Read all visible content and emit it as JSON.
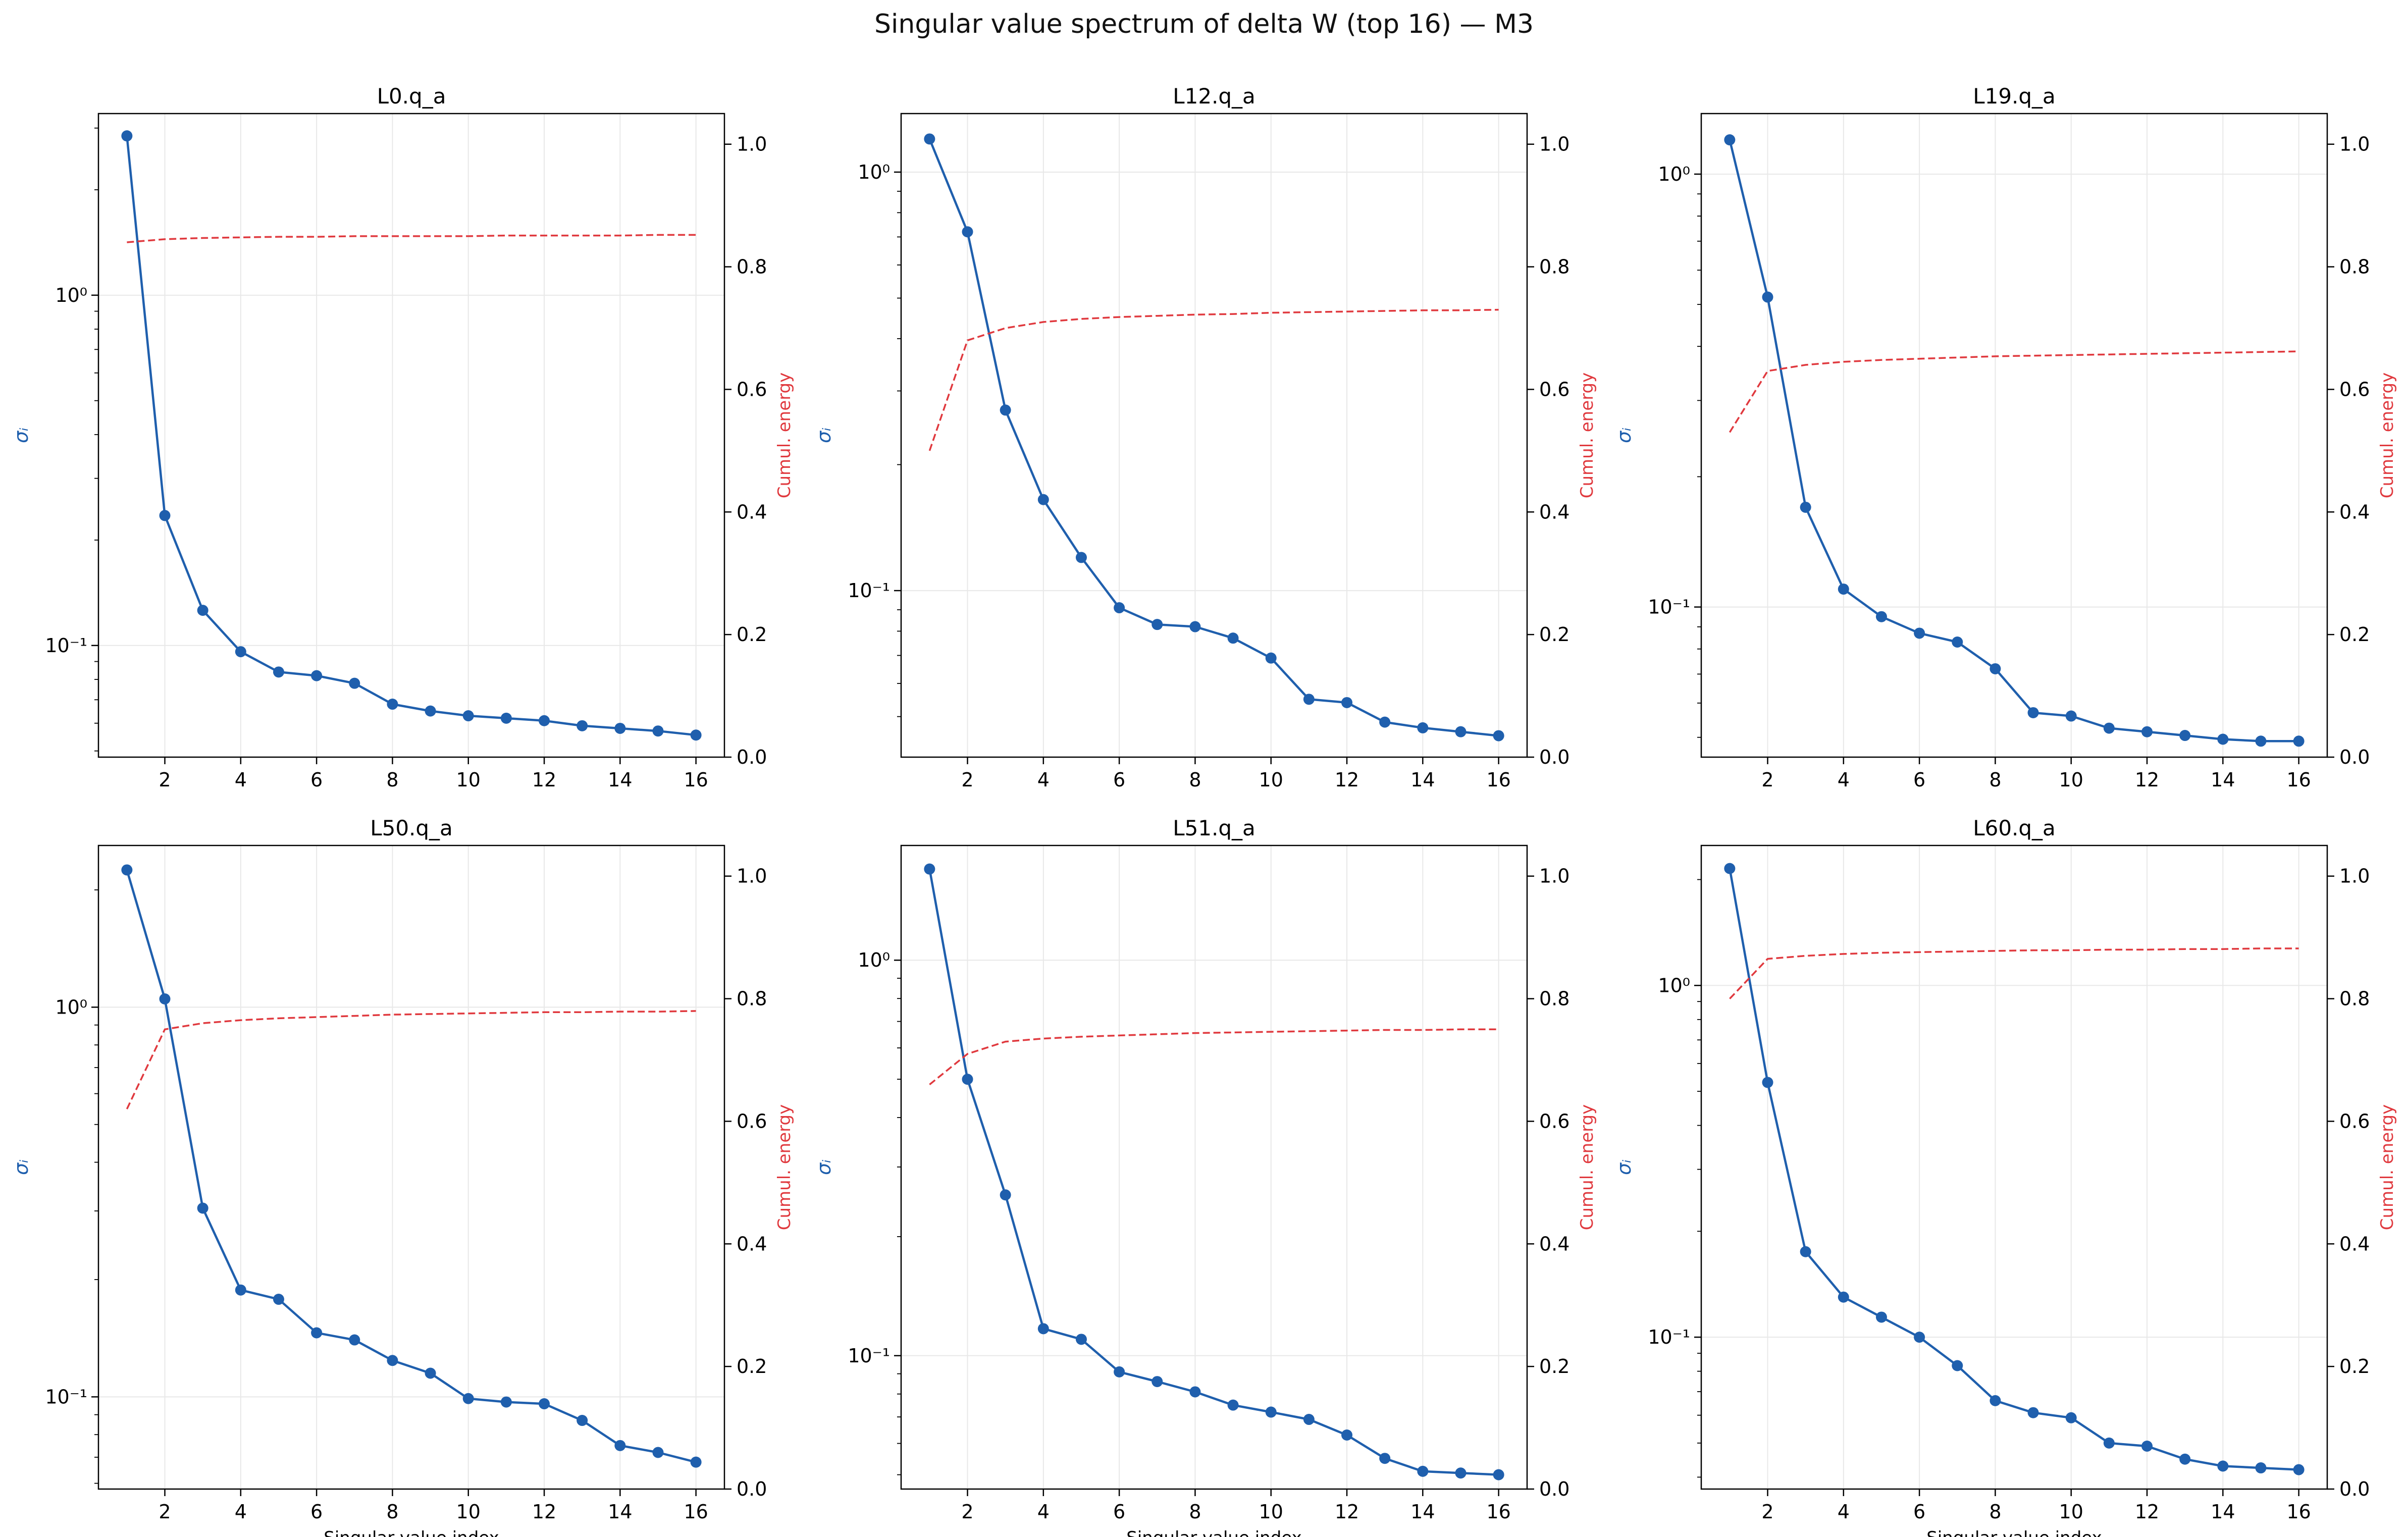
{
  "figure": {
    "suptitle": "Singular value spectrum of delta W (top 16) — M3"
  },
  "style": {
    "sigma_color": "#1f5fad",
    "energy_color": "#e0393e",
    "grid_color": "#e8e8e8",
    "axis_color": "#000000"
  },
  "chart_data": [
    {
      "type": "line",
      "title": "L0.q_a",
      "xlabel": "",
      "ylabel_left": "σᵢ",
      "ylabel_right": "Cumul. energy",
      "x": [
        1,
        2,
        3,
        4,
        5,
        6,
        7,
        8,
        9,
        10,
        11,
        12,
        13,
        14,
        15,
        16
      ],
      "xticks": [
        2,
        4,
        6,
        8,
        10,
        12,
        14,
        16
      ],
      "xlim": [
        0.25,
        16.75
      ],
      "left_axis": {
        "scale": "log",
        "ylim": [
          0.048,
          3.3
        ],
        "major_ticks": [
          0.1,
          1
        ],
        "major_tick_labels": [
          "10⁻¹",
          "10⁰"
        ]
      },
      "right_axis": {
        "scale": "linear",
        "ylim": [
          0,
          1.05
        ],
        "ticks": [
          0.0,
          0.2,
          0.4,
          0.6,
          0.8,
          1.0
        ],
        "tick_labels": [
          "0.0",
          "0.2",
          "0.4",
          "0.6",
          "0.8",
          "1.0"
        ]
      },
      "series": [
        {
          "axis": "left",
          "marker": "circle",
          "line": "solid",
          "values": [
            2.85,
            0.235,
            0.126,
            0.096,
            0.084,
            0.082,
            0.078,
            0.068,
            0.065,
            0.063,
            0.062,
            0.061,
            0.059,
            0.058,
            0.057,
            0.0555
          ]
        },
        {
          "axis": "right",
          "marker": "none",
          "line": "dashed",
          "values": [
            0.84,
            0.845,
            0.847,
            0.848,
            0.849,
            0.849,
            0.85,
            0.85,
            0.85,
            0.85,
            0.851,
            0.851,
            0.851,
            0.851,
            0.852,
            0.852
          ]
        }
      ]
    },
    {
      "type": "line",
      "title": "L12.q_a",
      "xlabel": "",
      "ylabel_left": "σᵢ",
      "ylabel_right": "Cumul. energy",
      "x": [
        1,
        2,
        3,
        4,
        5,
        6,
        7,
        8,
        9,
        10,
        11,
        12,
        13,
        14,
        15,
        16
      ],
      "xticks": [
        2,
        4,
        6,
        8,
        10,
        12,
        14,
        16
      ],
      "xlim": [
        0.25,
        16.75
      ],
      "left_axis": {
        "scale": "log",
        "ylim": [
          0.04,
          1.38
        ],
        "major_ticks": [
          0.1,
          1
        ],
        "major_tick_labels": [
          "10⁻¹",
          "10⁰"
        ]
      },
      "right_axis": {
        "scale": "linear",
        "ylim": [
          0,
          1.05
        ],
        "ticks": [
          0.0,
          0.2,
          0.4,
          0.6,
          0.8,
          1.0
        ],
        "tick_labels": [
          "0.0",
          "0.2",
          "0.4",
          "0.6",
          "0.8",
          "1.0"
        ]
      },
      "series": [
        {
          "axis": "left",
          "marker": "circle",
          "line": "solid",
          "values": [
            1.2,
            0.72,
            0.27,
            0.165,
            0.12,
            0.091,
            0.083,
            0.082,
            0.077,
            0.069,
            0.055,
            0.054,
            0.0485,
            0.047,
            0.046,
            0.045
          ]
        },
        {
          "axis": "right",
          "marker": "none",
          "line": "dashed",
          "values": [
            0.5,
            0.68,
            0.7,
            0.71,
            0.715,
            0.718,
            0.72,
            0.722,
            0.723,
            0.725,
            0.726,
            0.727,
            0.728,
            0.729,
            0.729,
            0.73
          ]
        }
      ]
    },
    {
      "type": "line",
      "title": "L19.q_a",
      "xlabel": "",
      "ylabel_left": "σᵢ",
      "ylabel_right": "Cumul. energy",
      "x": [
        1,
        2,
        3,
        4,
        5,
        6,
        7,
        8,
        9,
        10,
        11,
        12,
        13,
        14,
        15,
        16
      ],
      "xticks": [
        2,
        4,
        6,
        8,
        10,
        12,
        14,
        16
      ],
      "xlim": [
        0.25,
        16.75
      ],
      "left_axis": {
        "scale": "log",
        "ylim": [
          0.045,
          1.38
        ],
        "major_ticks": [
          0.1,
          1
        ],
        "major_tick_labels": [
          "10⁻¹",
          "10⁰"
        ]
      },
      "right_axis": {
        "scale": "linear",
        "ylim": [
          0,
          1.05
        ],
        "ticks": [
          0.0,
          0.2,
          0.4,
          0.6,
          0.8,
          1.0
        ],
        "tick_labels": [
          "0.0",
          "0.2",
          "0.4",
          "0.6",
          "0.8",
          "1.0"
        ]
      },
      "series": [
        {
          "axis": "left",
          "marker": "circle",
          "line": "solid",
          "values": [
            1.2,
            0.52,
            0.17,
            0.11,
            0.095,
            0.087,
            0.083,
            0.072,
            0.057,
            0.056,
            0.0525,
            0.0515,
            0.0505,
            0.0495,
            0.049,
            0.049
          ]
        },
        {
          "axis": "right",
          "marker": "none",
          "line": "dashed",
          "values": [
            0.53,
            0.63,
            0.64,
            0.645,
            0.648,
            0.65,
            0.652,
            0.654,
            0.655,
            0.656,
            0.657,
            0.658,
            0.659,
            0.66,
            0.661,
            0.662
          ]
        }
      ]
    },
    {
      "type": "line",
      "title": "L50.q_a",
      "xlabel": "Singular value index",
      "ylabel_left": "σᵢ",
      "ylabel_right": "Cumul. energy",
      "x": [
        1,
        2,
        3,
        4,
        5,
        6,
        7,
        8,
        9,
        10,
        11,
        12,
        13,
        14,
        15,
        16
      ],
      "xticks": [
        2,
        4,
        6,
        8,
        10,
        12,
        14,
        16
      ],
      "xlim": [
        0.25,
        16.75
      ],
      "left_axis": {
        "scale": "log",
        "ylim": [
          0.058,
          2.6
        ],
        "major_ticks": [
          0.1,
          1
        ],
        "major_tick_labels": [
          "10⁻¹",
          "10⁰"
        ]
      },
      "right_axis": {
        "scale": "linear",
        "ylim": [
          0,
          1.05
        ],
        "ticks": [
          0.0,
          0.2,
          0.4,
          0.6,
          0.8,
          1.0
        ],
        "tick_labels": [
          "0.0",
          "0.2",
          "0.4",
          "0.6",
          "0.8",
          "1.0"
        ]
      },
      "series": [
        {
          "axis": "left",
          "marker": "circle",
          "line": "solid",
          "values": [
            2.25,
            1.05,
            0.305,
            0.188,
            0.178,
            0.146,
            0.14,
            0.124,
            0.115,
            0.099,
            0.097,
            0.096,
            0.087,
            0.075,
            0.072,
            0.068
          ]
        },
        {
          "axis": "right",
          "marker": "none",
          "line": "dashed",
          "values": [
            0.62,
            0.75,
            0.76,
            0.765,
            0.768,
            0.77,
            0.772,
            0.774,
            0.775,
            0.776,
            0.777,
            0.778,
            0.778,
            0.779,
            0.779,
            0.78
          ]
        }
      ]
    },
    {
      "type": "line",
      "title": "L51.q_a",
      "xlabel": "Singular value index",
      "ylabel_left": "σᵢ",
      "ylabel_right": "Cumul. energy",
      "x": [
        1,
        2,
        3,
        4,
        5,
        6,
        7,
        8,
        9,
        10,
        11,
        12,
        13,
        14,
        15,
        16
      ],
      "xticks": [
        2,
        4,
        6,
        8,
        10,
        12,
        14,
        16
      ],
      "xlim": [
        0.25,
        16.75
      ],
      "left_axis": {
        "scale": "log",
        "ylim": [
          0.046,
          1.95
        ],
        "major_ticks": [
          0.1,
          1
        ],
        "major_tick_labels": [
          "10⁻¹",
          "10⁰"
        ]
      },
      "right_axis": {
        "scale": "linear",
        "ylim": [
          0,
          1.05
        ],
        "ticks": [
          0.0,
          0.2,
          0.4,
          0.6,
          0.8,
          1.0
        ],
        "tick_labels": [
          "0.0",
          "0.2",
          "0.4",
          "0.6",
          "0.8",
          "1.0"
        ]
      },
      "series": [
        {
          "axis": "left",
          "marker": "circle",
          "line": "solid",
          "values": [
            1.7,
            0.5,
            0.255,
            0.117,
            0.11,
            0.091,
            0.086,
            0.081,
            0.075,
            0.072,
            0.069,
            0.063,
            0.055,
            0.051,
            0.0505,
            0.05
          ]
        },
        {
          "axis": "right",
          "marker": "none",
          "line": "dashed",
          "values": [
            0.66,
            0.71,
            0.73,
            0.735,
            0.738,
            0.74,
            0.742,
            0.744,
            0.745,
            0.746,
            0.747,
            0.748,
            0.749,
            0.749,
            0.75,
            0.75
          ]
        }
      ]
    },
    {
      "type": "line",
      "title": "L60.q_a",
      "xlabel": "Singular value index",
      "ylabel_left": "σᵢ",
      "ylabel_right": "Cumul. energy",
      "x": [
        1,
        2,
        3,
        4,
        5,
        6,
        7,
        8,
        9,
        10,
        11,
        12,
        13,
        14,
        15,
        16
      ],
      "xticks": [
        2,
        4,
        6,
        8,
        10,
        12,
        14,
        16
      ],
      "xlim": [
        0.25,
        16.75
      ],
      "left_axis": {
        "scale": "log",
        "ylim": [
          0.037,
          2.5
        ],
        "major_ticks": [
          0.1,
          1
        ],
        "major_tick_labels": [
          "10⁻¹",
          "10⁰"
        ]
      },
      "right_axis": {
        "scale": "linear",
        "ylim": [
          0,
          1.05
        ],
        "ticks": [
          0.0,
          0.2,
          0.4,
          0.6,
          0.8,
          1.0
        ],
        "tick_labels": [
          "0.0",
          "0.2",
          "0.4",
          "0.6",
          "0.8",
          "1.0"
        ]
      },
      "series": [
        {
          "axis": "left",
          "marker": "circle",
          "line": "solid",
          "values": [
            2.15,
            0.53,
            0.175,
            0.13,
            0.114,
            0.1,
            0.083,
            0.066,
            0.061,
            0.059,
            0.05,
            0.049,
            0.045,
            0.043,
            0.0425,
            0.042
          ]
        },
        {
          "axis": "right",
          "marker": "none",
          "line": "dashed",
          "values": [
            0.8,
            0.865,
            0.87,
            0.873,
            0.875,
            0.876,
            0.877,
            0.878,
            0.879,
            0.879,
            0.88,
            0.88,
            0.881,
            0.881,
            0.882,
            0.882
          ]
        }
      ]
    }
  ]
}
